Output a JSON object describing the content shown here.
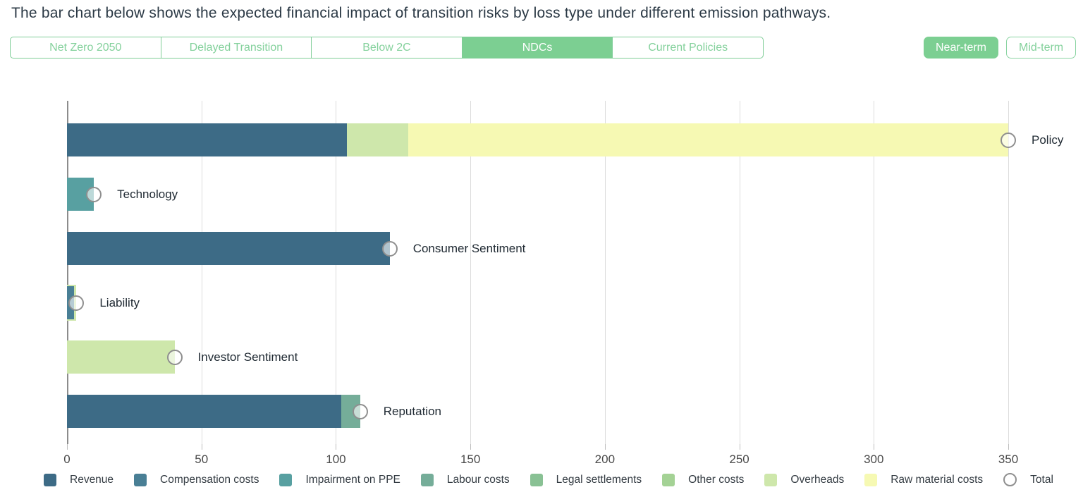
{
  "header": {
    "title": "The bar chart below shows the expected financial impact of transition risks by loss type under different emission pathways."
  },
  "pathway_tabs": [
    {
      "label": "Net Zero 2050",
      "selected": false
    },
    {
      "label": "Delayed Transition",
      "selected": false
    },
    {
      "label": "Below 2C",
      "selected": false
    },
    {
      "label": "NDCs",
      "selected": true
    },
    {
      "label": "Current Policies",
      "selected": false
    }
  ],
  "term_buttons": [
    {
      "label": "Near-term",
      "selected": true
    },
    {
      "label": "Mid-term",
      "selected": false
    }
  ],
  "theme": {
    "accent_green": "#7ccf92",
    "accent_green_text": "#84d19c",
    "gridline": "#dcdcdc",
    "axis_line": "#8c8c8c",
    "marker_border": "#8f8f8f",
    "title_text": "#2b3945"
  },
  "chart_data": {
    "type": "bar",
    "orientation": "horizontal_stacked",
    "title": "",
    "xlabel": "",
    "ylabel": "",
    "x_axis": {
      "min": 0,
      "max": 350,
      "tick_interval": 50,
      "ticks": [
        0,
        50,
        100,
        150,
        200,
        250,
        300,
        350
      ]
    },
    "grid": true,
    "legend_position": "bottom",
    "categories": [
      "Policy",
      "Technology",
      "Consumer Sentiment",
      "Liability",
      "Investor Sentiment",
      "Reputation"
    ],
    "palette": {
      "Revenue": "#3d6b86",
      "Compensation costs": "#497f95",
      "Impairment on PPE": "#58a0a1",
      "Labour costs": "#75ad99",
      "Legal settlements": "#89c194",
      "Other costs": "#a4d295",
      "Overheads": "#cee7ab",
      "Raw material costs": "#f6f9b3"
    },
    "bars": [
      {
        "category": "Policy",
        "segments": [
          {
            "type": "Revenue",
            "value": 104
          },
          {
            "type": "Overheads",
            "value": 23
          },
          {
            "type": "Raw material costs",
            "value": 223
          }
        ],
        "total": 350
      },
      {
        "category": "Technology",
        "segments": [
          {
            "type": "Impairment on PPE",
            "value": 10
          }
        ],
        "total": 10
      },
      {
        "category": "Consumer Sentiment",
        "segments": [
          {
            "type": "Revenue",
            "value": 120
          }
        ],
        "total": 120
      },
      {
        "category": "Liability",
        "segments": [
          {
            "type": "Compensation costs",
            "value": 2.6
          },
          {
            "type": "Overheads",
            "value": 0.9
          }
        ],
        "total": 3.5,
        "overlap_underlay": true
      },
      {
        "category": "Investor Sentiment",
        "segments": [
          {
            "type": "Overheads",
            "value": 40
          }
        ],
        "total": 40
      },
      {
        "category": "Reputation",
        "segments": [
          {
            "type": "Revenue",
            "value": 102
          },
          {
            "type": "Labour costs",
            "value": 7
          }
        ],
        "total": 109
      }
    ],
    "legend": [
      {
        "label": "Revenue",
        "color": "#3d6b86"
      },
      {
        "label": "Compensation costs",
        "color": "#497f95"
      },
      {
        "label": "Impairment on PPE",
        "color": "#58a0a1"
      },
      {
        "label": "Labour costs",
        "color": "#75ad99"
      },
      {
        "label": "Legal settlements",
        "color": "#89c194"
      },
      {
        "label": "Other costs",
        "color": "#a4d295"
      },
      {
        "label": "Overheads",
        "color": "#cee7ab"
      },
      {
        "label": "Raw material costs",
        "color": "#f6f9b3"
      },
      {
        "label": "Total",
        "marker": "circle"
      }
    ]
  }
}
